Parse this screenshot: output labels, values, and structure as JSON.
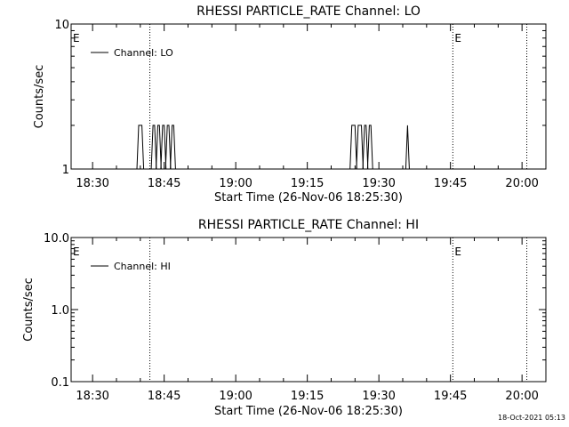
{
  "footer": {
    "timestamp": "18-Oct-2021 05:13"
  },
  "chart_data": [
    {
      "type": "line",
      "title": "RHESSI PARTICLE_RATE Channel: LO",
      "xlabel": "Start Time (26-Nov-06 18:25:30)",
      "ylabel": "Counts/sec",
      "yscale": "log",
      "ylim": [
        1,
        10
      ],
      "y_tick_labels": [
        "1",
        "10"
      ],
      "xlim": [
        "18:25:30",
        "20:05:00"
      ],
      "x_tick_labels": [
        "18:30",
        "18:45",
        "19:00",
        "19:15",
        "19:30",
        "19:45",
        "20:00"
      ],
      "legend": {
        "position": "top-left",
        "entries": [
          "Channel: LO"
        ]
      },
      "event_markers": [
        {
          "time": "18:25:30",
          "label": "E",
          "line": false
        },
        {
          "time": "18:42:00",
          "label": "",
          "line": true
        },
        {
          "time": "19:45:30",
          "label": "E",
          "line": true
        },
        {
          "time": "20:01:00",
          "label": "",
          "line": true
        }
      ],
      "grid": false,
      "series": [
        {
          "name": "Channel: LO",
          "step_segments": [
            {
              "start": "18:39:40",
              "end": "18:40:20",
              "value": 2
            },
            {
              "start": "18:42:40",
              "end": "18:43:00",
              "value": 2
            },
            {
              "start": "18:43:40",
              "end": "18:44:00",
              "value": 2
            },
            {
              "start": "18:44:40",
              "end": "18:45:00",
              "value": 2
            },
            {
              "start": "18:45:40",
              "end": "18:46:00",
              "value": 2
            },
            {
              "start": "18:46:40",
              "end": "18:47:00",
              "value": 2
            },
            {
              "start": "19:24:20",
              "end": "19:25:00",
              "value": 2
            },
            {
              "start": "19:25:40",
              "end": "19:26:20",
              "value": 2
            },
            {
              "start": "19:27:00",
              "end": "19:27:20",
              "value": 2
            },
            {
              "start": "19:28:00",
              "end": "19:28:20",
              "value": 2
            },
            {
              "start": "19:36:00",
              "end": "19:36:00",
              "value": 2
            }
          ]
        }
      ]
    },
    {
      "type": "line",
      "title": "RHESSI PARTICLE_RATE Channel: HI",
      "xlabel": "Start Time (26-Nov-06 18:25:30)",
      "ylabel": "Counts/sec",
      "yscale": "log",
      "ylim": [
        0.1,
        10
      ],
      "y_tick_labels": [
        "0.1",
        "1.0",
        "10.0"
      ],
      "xlim": [
        "18:25:30",
        "20:05:00"
      ],
      "x_tick_labels": [
        "18:30",
        "18:45",
        "19:00",
        "19:15",
        "19:30",
        "19:45",
        "20:00"
      ],
      "legend": {
        "position": "top-left",
        "entries": [
          "Channel: HI"
        ]
      },
      "event_markers": [
        {
          "time": "18:25:30",
          "label": "E",
          "line": false
        },
        {
          "time": "18:42:00",
          "label": "",
          "line": true
        },
        {
          "time": "19:45:30",
          "label": "E",
          "line": true
        },
        {
          "time": "20:01:00",
          "label": "",
          "line": true
        }
      ],
      "grid": false,
      "series": [
        {
          "name": "Channel: HI",
          "step_segments": []
        }
      ]
    }
  ]
}
